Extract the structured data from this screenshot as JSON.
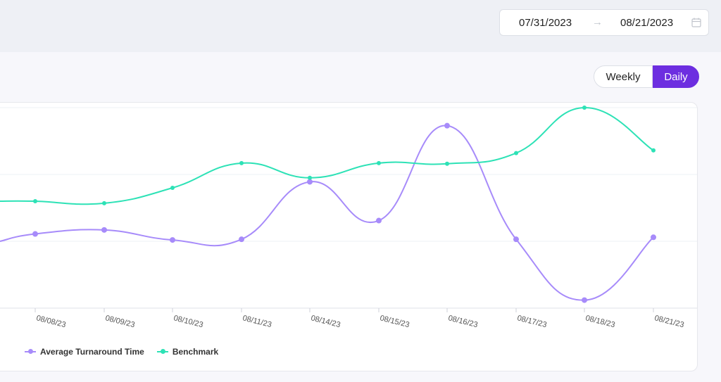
{
  "date_range": {
    "start": "07/31/2023",
    "end": "08/21/2023",
    "arrow": "→"
  },
  "view_toggle": {
    "weekly_label": "Weekly",
    "daily_label": "Daily",
    "selected": "Daily"
  },
  "chart_data": {
    "type": "line",
    "categories": [
      "08/08/23",
      "08/09/23",
      "08/10/23",
      "08/11/23",
      "08/14/23",
      "08/15/23",
      "08/16/23",
      "08/17/23",
      "08/18/23",
      "08/21/23"
    ],
    "series": [
      {
        "name": "Average Turnaround Time",
        "color": "#a78bfa",
        "values": [
          1.11,
          1.17,
          1.02,
          1.03,
          1.89,
          1.31,
          2.73,
          1.03,
          0.12,
          1.06
        ]
      },
      {
        "name": "Benchmark",
        "color": "#2de2b6",
        "values": [
          1.6,
          1.57,
          1.8,
          2.17,
          1.95,
          2.17,
          2.16,
          2.32,
          3.0,
          2.36
        ]
      }
    ],
    "ylim": [
      0,
      3
    ],
    "grid": true,
    "legend_position": "bottom-left"
  },
  "legend": {
    "series1": "Average Turnaround Time",
    "series2": "Benchmark"
  }
}
